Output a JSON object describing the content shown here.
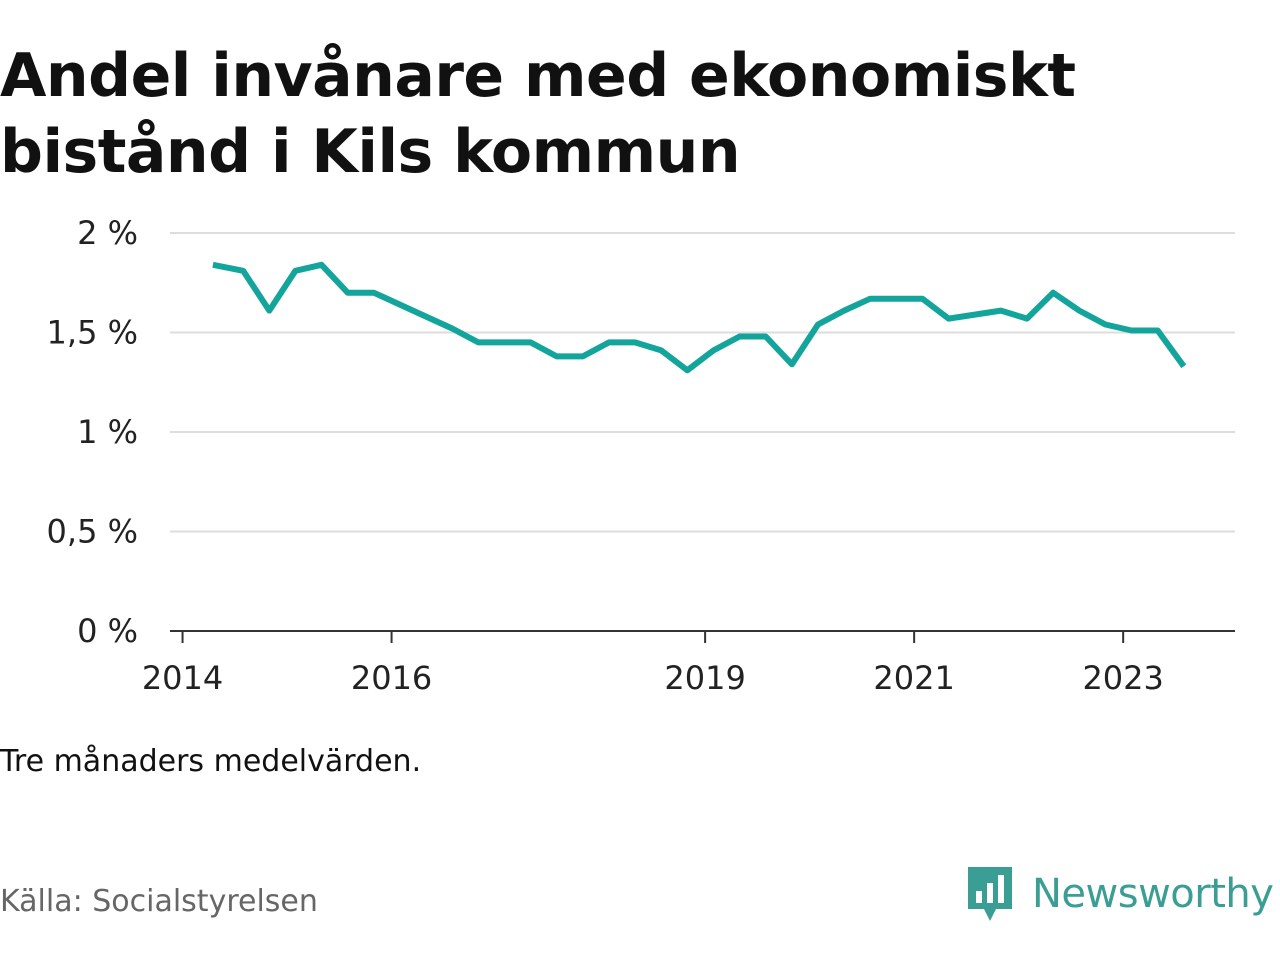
{
  "header": {
    "title": "Andel invånare med ekonomiskt bistånd i Kils kommun"
  },
  "footer": {
    "note": "Tre månaders medelvärden.",
    "source": "Källa: Socialstyrelsen",
    "brand": "Newsworthy"
  },
  "colors": {
    "line": "#13a59b",
    "grid": "#dddddd",
    "axis": "#333333",
    "brand": "#3a9e94"
  },
  "chart_data": {
    "type": "line",
    "title": "Andel invånare med ekonomiskt bistånd i Kils kommun",
    "xlabel": "",
    "ylabel": "",
    "y_ticks": [
      {
        "value": 0,
        "label": "0 %"
      },
      {
        "value": 0.5,
        "label": "0,5 %"
      },
      {
        "value": 1,
        "label": "1 %"
      },
      {
        "value": 1.5,
        "label": "1,5 %"
      },
      {
        "value": 2,
        "label": "2 %"
      }
    ],
    "x_ticks": [
      {
        "value": 2014.0,
        "label": "2014"
      },
      {
        "value": 2016.0,
        "label": "2016"
      },
      {
        "value": 2019.0,
        "label": "2019"
      },
      {
        "value": 2021.0,
        "label": "2021"
      },
      {
        "value": 2023.0,
        "label": "2023"
      }
    ],
    "xlim": [
      2013.88,
      2024.07
    ],
    "ylim": [
      0,
      2
    ],
    "grid": true,
    "series": [
      {
        "x": [
          2014.29,
          2014.58,
          2014.83,
          2015.08,
          2015.33,
          2015.58,
          2015.83,
          2016.08,
          2016.33,
          2016.58,
          2016.83,
          2017.08,
          2017.33,
          2017.58,
          2017.83,
          2018.08,
          2018.33,
          2018.58,
          2018.83,
          2019.08,
          2019.33,
          2019.58,
          2019.83,
          2020.08,
          2020.33,
          2020.58,
          2020.83,
          2021.08,
          2021.33,
          2021.58,
          2021.83,
          2022.08,
          2022.33,
          2022.58,
          2022.83,
          2023.08,
          2023.33,
          2023.58
        ],
        "y": [
          1.84,
          1.81,
          1.61,
          1.81,
          1.84,
          1.7,
          1.7,
          1.64,
          1.58,
          1.52,
          1.45,
          1.45,
          1.45,
          1.38,
          1.38,
          1.45,
          1.45,
          1.41,
          1.31,
          1.41,
          1.48,
          1.48,
          1.34,
          1.54,
          1.61,
          1.67,
          1.67,
          1.67,
          1.57,
          1.59,
          1.61,
          1.57,
          1.7,
          1.61,
          1.54,
          1.51,
          1.51,
          1.33
        ]
      }
    ]
  }
}
